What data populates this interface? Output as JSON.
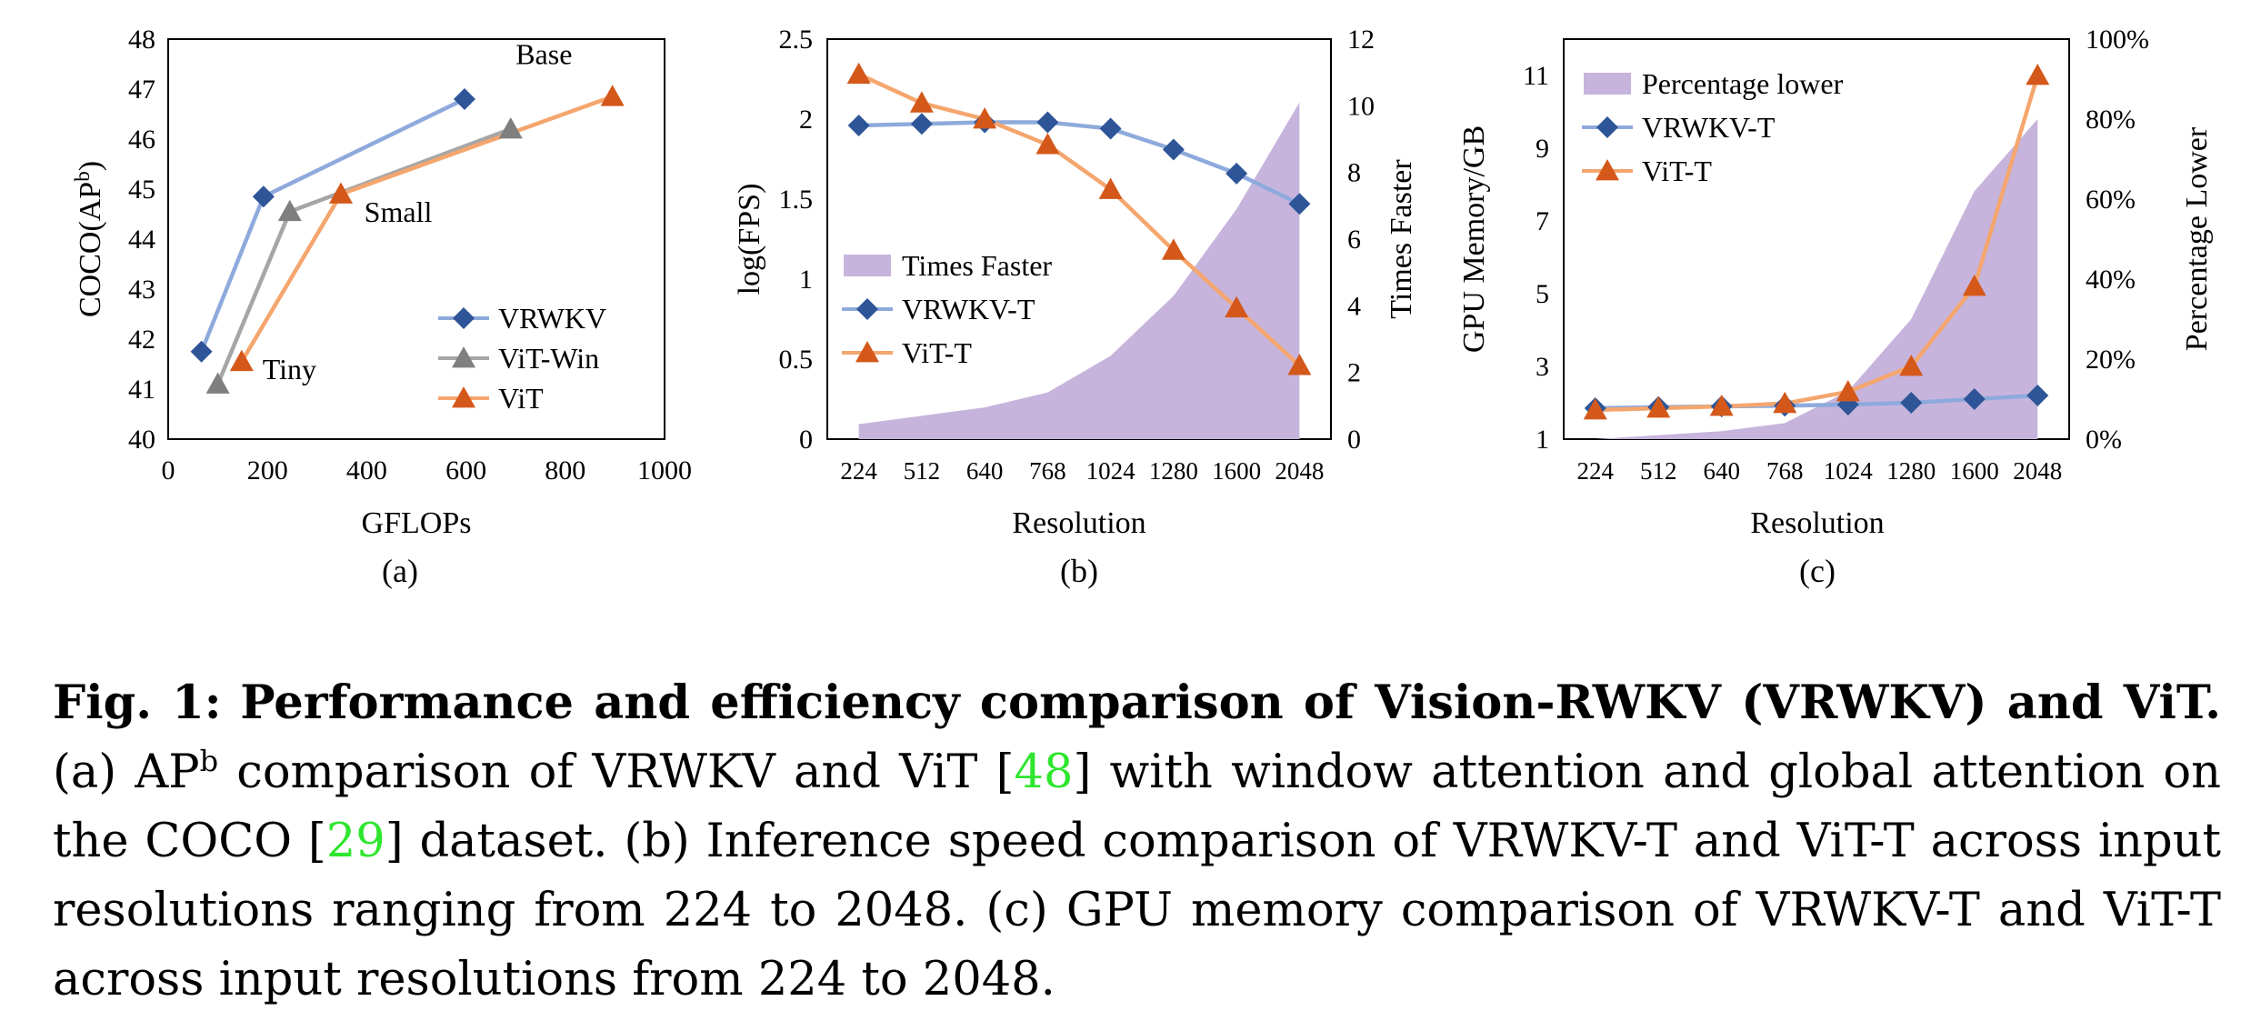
{
  "chart_data": [
    {
      "type": "line",
      "panel_label": "(a)",
      "xlabel": "GFLOPs",
      "ylabel_base": "COCO(AP",
      "ylabel_sup": "b",
      "ylabel_close": ")",
      "xlim": [
        0,
        1000
      ],
      "ylim": [
        40,
        48
      ],
      "xticks": [
        0,
        200,
        400,
        600,
        800,
        1000
      ],
      "yticks": [
        40,
        41,
        42,
        43,
        44,
        45,
        46,
        47,
        48
      ],
      "series": [
        {
          "name": "VRWKV",
          "marker": "diamond",
          "line_color": "#8eaadc",
          "marker_color": "#2e5597",
          "points": [
            [
              67,
              41.75
            ],
            [
              192,
              44.85
            ],
            [
              597,
              46.8
            ]
          ]
        },
        {
          "name": "ViT-Win",
          "marker": "triangle",
          "line_color": "#a6a6a6",
          "marker_color": "#7f7f7f",
          "points": [
            [
              100,
              41.1
            ],
            [
              245,
              44.55
            ],
            [
              690,
              46.2
            ]
          ]
        },
        {
          "name": "ViT",
          "marker": "triangle",
          "line_color": "#f4a66e",
          "marker_color": "#d4581a",
          "points": [
            [
              148,
              41.55
            ],
            [
              348,
              44.9
            ],
            [
              895,
              46.85
            ]
          ]
        }
      ],
      "annotations": [
        {
          "text": "Tiny",
          "at": [
            190,
            41.2
          ]
        },
        {
          "text": "Small",
          "at": [
            395,
            44.35
          ]
        },
        {
          "text": "Base",
          "at": [
            700,
            47.5
          ]
        }
      ],
      "legend_position": "bottom-right"
    },
    {
      "type": "line",
      "panel_label": "(b)",
      "xlabel": "Resolution",
      "ylabel": "log(FPS)",
      "y2label": "Times Faster",
      "categories": [
        "224",
        "512",
        "640",
        "768",
        "1024",
        "1280",
        "1600",
        "2048"
      ],
      "ylim": [
        0,
        2.5
      ],
      "yticks": [
        "0",
        "0.5",
        "1",
        "1.5",
        "2",
        "2.5"
      ],
      "y2lim": [
        0,
        12
      ],
      "y2ticks": [
        "0",
        "2",
        "4",
        "6",
        "8",
        "10",
        "12"
      ],
      "series": [
        {
          "name": "VRWKV-T",
          "marker": "diamond",
          "line_color": "#8eaadc",
          "marker_color": "#2e5597",
          "values": [
            1.96,
            1.97,
            1.98,
            1.98,
            1.94,
            1.81,
            1.66,
            1.47
          ]
        },
        {
          "name": "ViT-T",
          "marker": "triangle",
          "line_color": "#f4a66e",
          "marker_color": "#d4581a",
          "values": [
            2.28,
            2.1,
            2.0,
            1.84,
            1.56,
            1.18,
            0.82,
            0.46
          ]
        }
      ],
      "area_series": {
        "name": "Times Faster",
        "axis": "right",
        "color": "#c7b4dd",
        "values": [
          0.45,
          0.7,
          0.95,
          1.4,
          2.5,
          4.3,
          6.9,
          10.1
        ]
      },
      "legend_position": "lower-left"
    },
    {
      "type": "line",
      "panel_label": "(c)",
      "xlabel": "Resolution",
      "ylabel": "GPU Memory/GB",
      "y2label": "Percentage Lower",
      "categories": [
        "224",
        "512",
        "640",
        "768",
        "1024",
        "1280",
        "1600",
        "2048"
      ],
      "ylim": [
        1,
        12
      ],
      "yticks": [
        "1",
        "3",
        "5",
        "7",
        "9",
        "11"
      ],
      "y2lim": [
        0,
        100
      ],
      "y2ticks": [
        "0%",
        "20%",
        "40%",
        "60%",
        "80%",
        "100%"
      ],
      "series": [
        {
          "name": "VRWKV-T",
          "marker": "diamond",
          "line_color": "#8eaadc",
          "marker_color": "#2e5597",
          "values": [
            1.85,
            1.88,
            1.9,
            1.92,
            1.95,
            2.0,
            2.1,
            2.2
          ]
        },
        {
          "name": "ViT-T",
          "marker": "triangle",
          "line_color": "#f4a66e",
          "marker_color": "#d4581a",
          "values": [
            1.8,
            1.85,
            1.9,
            1.98,
            2.3,
            3.0,
            5.2,
            11.0
          ]
        }
      ],
      "area_series": {
        "name": "Percentage lower",
        "axis": "right",
        "color": "#c7b4dd",
        "values": [
          0,
          1,
          2,
          4,
          12,
          30,
          62,
          80
        ]
      },
      "legend_position": "top-left"
    }
  ],
  "caption": {
    "fig_label": "Fig. 1:",
    "title": "Performance and efficiency comparison of Vision-RWKV (VRWKV) and ViT.",
    "part_a_prefix": "(a) AP",
    "part_a_sup": "b",
    "part_a_mid": "comparison of VRWKV and ViT [",
    "ref_48": "48",
    "part_a_mid2": "] with window attention and global attention on the COCO [",
    "ref_29": "29",
    "part_a_end": "] dataset.",
    "part_b": "(b) Inference speed comparison of VRWKV-T and ViT-T across input resolutions ranging from 224 to 2048.",
    "part_c": "(c) GPU memory comparison of VRWKV-T and ViT-T across input resolutions from 224 to 2048."
  }
}
